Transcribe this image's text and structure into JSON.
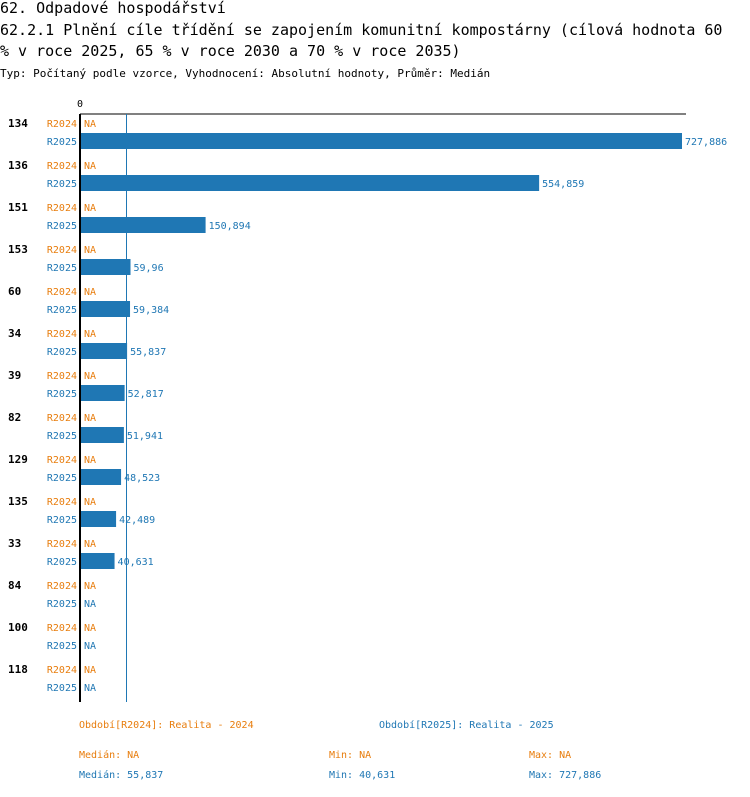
{
  "page": {
    "title_line1": "62. Odpadové hospodářství",
    "title_line2": "62.2.1 Plnění cíle třídění se zapojením komunitní kompostárny (cílová hodnota 60",
    "title_line3": "% v roce 2025, 65 % v roce 2030 a 70 % v roce 2035)",
    "subtitle": "Typ: Počítaný podle vzorce, Vyhodnocení: Absolutní hodnoty, Průměr: Medián"
  },
  "colors": {
    "r2024": "#e87d0d",
    "r2025": "#1f77b4",
    "axis": "#000000"
  },
  "chart_data": {
    "type": "bar",
    "orientation": "horizontal",
    "xlim": [
      0,
      727.886
    ],
    "x_tick_label": "0",
    "median_line_value": 55.837,
    "series_labels": [
      "R2024",
      "R2025"
    ],
    "categories": [
      "134",
      "136",
      "151",
      "153",
      "60",
      "34",
      "39",
      "82",
      "129",
      "135",
      "33",
      "84",
      "100",
      "118"
    ],
    "series": [
      {
        "name": "R2024",
        "values": [
          null,
          null,
          null,
          null,
          null,
          null,
          null,
          null,
          null,
          null,
          null,
          null,
          null,
          null
        ],
        "labels": [
          "NA",
          "NA",
          "NA",
          "NA",
          "NA",
          "NA",
          "NA",
          "NA",
          "NA",
          "NA",
          "NA",
          "NA",
          "NA",
          "NA"
        ]
      },
      {
        "name": "R2025",
        "values": [
          727.886,
          554.859,
          150.894,
          59.96,
          59.384,
          55.837,
          52.817,
          51.941,
          48.523,
          42.489,
          40.631,
          null,
          null,
          null
        ],
        "labels": [
          "727,886",
          "554,859",
          "150,894",
          "59,96",
          "59,384",
          "55,837",
          "52,817",
          "51,941",
          "48,523",
          "42,489",
          "40,631",
          "NA",
          "NA",
          "NA"
        ]
      }
    ]
  },
  "legend": {
    "r2024": "Období[R2024]: Realita - 2024",
    "r2025": "Období[R2025]: Realita - 2025"
  },
  "stats": {
    "r2024": {
      "median": "Medián: NA",
      "min": "Min: NA",
      "max": "Max: NA"
    },
    "r2025": {
      "median": "Medián: 55,837",
      "min": "Min: 40,631",
      "max": "Max: 727,886"
    }
  }
}
